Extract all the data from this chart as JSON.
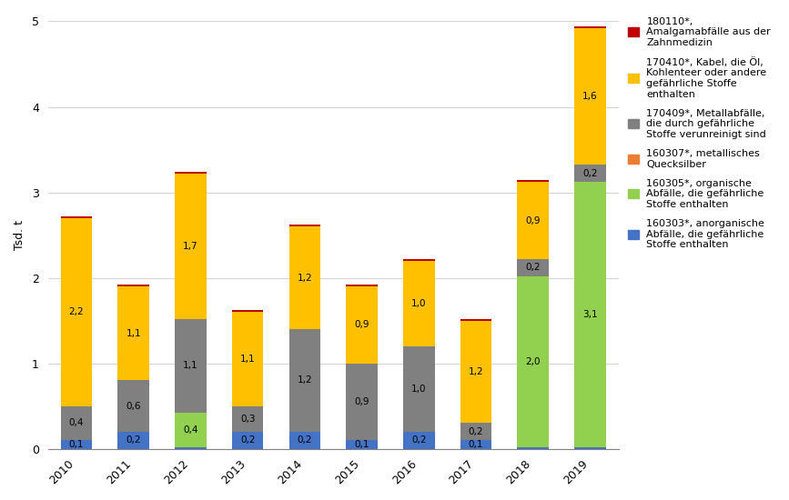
{
  "years": [
    2010,
    2011,
    2012,
    2013,
    2014,
    2015,
    2016,
    2017,
    2018,
    2019
  ],
  "series": {
    "160303": [
      0.1,
      0.2,
      0.02,
      0.2,
      0.2,
      0.1,
      0.2,
      0.1,
      0.02,
      0.02
    ],
    "160305": [
      0.0,
      0.0,
      0.4,
      0.0,
      0.0,
      0.0,
      0.0,
      0.0,
      2.0,
      3.1
    ],
    "160307": [
      0.0,
      0.0,
      0.0,
      0.0,
      0.0,
      0.0,
      0.0,
      0.0,
      0.0,
      0.0
    ],
    "170409": [
      0.4,
      0.6,
      1.1,
      0.3,
      1.2,
      0.9,
      1.0,
      0.2,
      0.2,
      0.2
    ],
    "170410": [
      2.2,
      1.1,
      1.7,
      1.1,
      1.2,
      0.9,
      1.0,
      1.2,
      0.9,
      1.6
    ],
    "180110": [
      0.02,
      0.02,
      0.02,
      0.02,
      0.02,
      0.02,
      0.02,
      0.02,
      0.02,
      0.02
    ]
  },
  "colors": {
    "160303": "#4472C4",
    "160305": "#92D050",
    "160307": "#ED7D31",
    "170409": "#808080",
    "170410": "#FFC000",
    "180110": "#C00000"
  },
  "labels": {
    "160303": "160303*, anorganische\nAbfälle, die gefährliche\nStoffe enthalten",
    "160305": "160305*, organische\nAbfälle, die gefährliche\nStoffe enthalten",
    "160307": "160307*, metallisches\nQuecksilber",
    "170409": "170409*, Metallabfälle,\ndie durch gefährliche\nStoffe verunreinigt sind",
    "170410": "170410*, Kabel, die Öl,\nKohlenteer oder andere\ngefährliche Stoffe\nenthalten",
    "180110": "180110*,\nAmalgamabfälle aus der\nZahnmedizin"
  },
  "bar_labels": {
    "160303": [
      "0,1",
      "0,2",
      null,
      "0,2",
      "0,2",
      "0,1",
      "0,2",
      "0,1",
      null,
      null
    ],
    "160305": [
      null,
      null,
      "0,4",
      null,
      null,
      null,
      null,
      null,
      "2,0",
      "3,1"
    ],
    "160307": [
      null,
      null,
      null,
      null,
      null,
      null,
      null,
      null,
      null,
      null
    ],
    "170409": [
      "0,4",
      "0,6",
      "1,1",
      "0,3",
      "1,2",
      "0,9",
      "1,0",
      "0,2",
      "0,2",
      "0,2"
    ],
    "170410": [
      "2,2",
      "1,1",
      "1,7",
      "1,1",
      "1,2",
      "0,9",
      "1,0",
      "1,2",
      "0,9",
      "1,6"
    ],
    "180110": [
      null,
      null,
      null,
      null,
      null,
      null,
      null,
      null,
      null,
      null
    ]
  },
  "ylabel": "Tsd. t",
  "ylim": [
    0,
    5
  ],
  "yticks": [
    0,
    1,
    2,
    3,
    4,
    5
  ],
  "figsize": [
    8.67,
    5.5
  ],
  "dpi": 100
}
